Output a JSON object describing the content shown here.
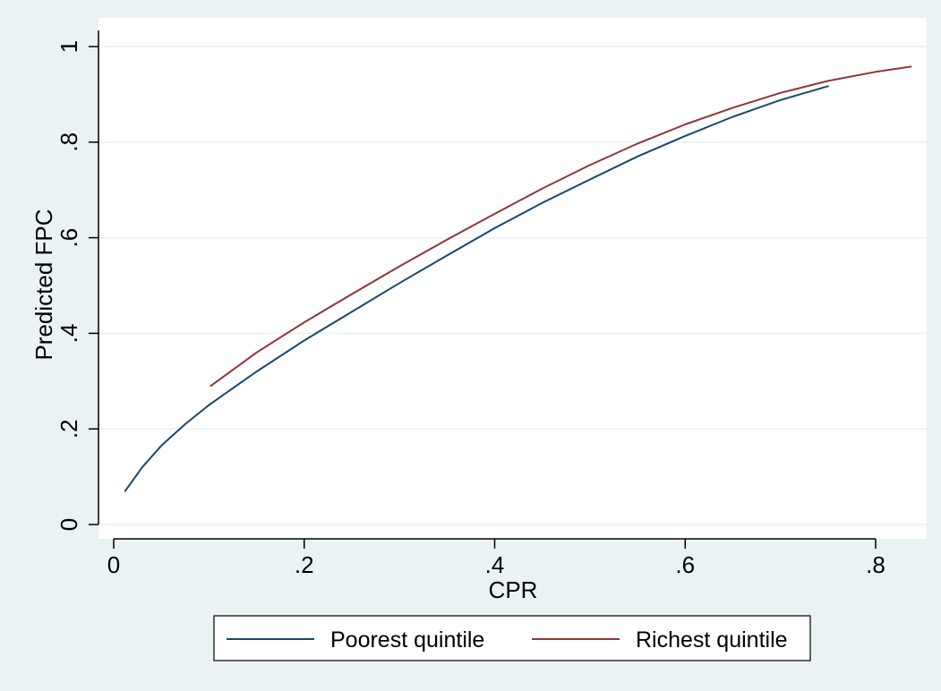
{
  "chart_data": {
    "type": "line",
    "xlabel": "CPR",
    "ylabel": "Predicted FPC",
    "xlim": [
      0,
      0.84
    ],
    "ylim": [
      0,
      1
    ],
    "x_ticks": [
      0,
      0.2,
      0.4,
      0.6,
      0.8
    ],
    "x_tick_labels": [
      "0",
      ".2",
      ".4",
      ".6",
      ".8"
    ],
    "y_ticks": [
      0,
      0.2,
      0.4,
      0.6,
      0.8,
      1
    ],
    "y_tick_labels": [
      "0",
      ".2",
      ".4",
      ".6",
      ".8",
      "1"
    ],
    "grid": "horizontal",
    "legend_position": "bottom",
    "series": [
      {
        "name": "Poorest quintile",
        "color": "#1a476f",
        "x": [
          0.012,
          0.03,
          0.05,
          0.075,
          0.1,
          0.15,
          0.2,
          0.25,
          0.3,
          0.35,
          0.4,
          0.45,
          0.5,
          0.55,
          0.6,
          0.65,
          0.7,
          0.75
        ],
        "y": [
          0.07,
          0.12,
          0.165,
          0.21,
          0.25,
          0.32,
          0.385,
          0.445,
          0.505,
          0.563,
          0.62,
          0.673,
          0.722,
          0.77,
          0.813,
          0.853,
          0.888,
          0.917
        ]
      },
      {
        "name": "Richest quintile",
        "color": "#90353b",
        "x": [
          0.102,
          0.15,
          0.2,
          0.25,
          0.3,
          0.35,
          0.4,
          0.45,
          0.5,
          0.55,
          0.6,
          0.65,
          0.7,
          0.75,
          0.8,
          0.837
        ],
        "y": [
          0.29,
          0.36,
          0.423,
          0.482,
          0.54,
          0.596,
          0.65,
          0.703,
          0.752,
          0.797,
          0.837,
          0.872,
          0.903,
          0.928,
          0.947,
          0.958
        ]
      }
    ]
  }
}
